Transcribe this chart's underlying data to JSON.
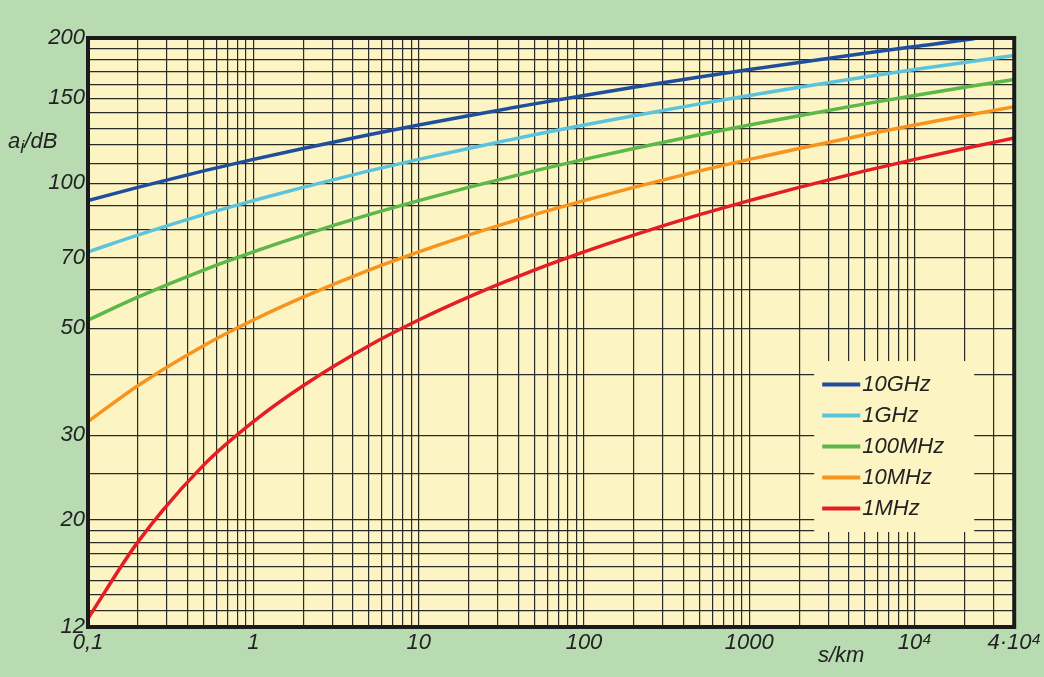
{
  "chart_data": {
    "type": "line",
    "xlabel": "s/km",
    "ylabel": "a$_{i}$/dB",
    "log": "xy",
    "grid": true,
    "legend": "bottom right",
    "marker": "none",
    "line_style": "solid",
    "x": [
      0.1,
      0.2,
      0.5,
      1,
      2,
      5,
      10,
      20,
      50,
      100,
      200,
      500,
      1000,
      2000,
      5000,
      10000,
      20000,
      40000
    ],
    "xlim": [
      0.1,
      40000
    ],
    "xticks": [
      {
        "value": 0.1,
        "label": "0,1"
      },
      {
        "value": 0.2,
        "label": null
      },
      {
        "value": 0.3,
        "label": null
      },
      {
        "value": 0.4,
        "label": null
      },
      {
        "value": 0.5,
        "label": null
      },
      {
        "value": 0.6,
        "label": null
      },
      {
        "value": 0.7,
        "label": null
      },
      {
        "value": 0.8,
        "label": null
      },
      {
        "value": 0.9,
        "label": null
      },
      1,
      {
        "value": 2,
        "label": null
      },
      {
        "value": 3,
        "label": null
      },
      {
        "value": 4,
        "label": null
      },
      {
        "value": 5,
        "label": null
      },
      {
        "value": 6,
        "label": null
      },
      {
        "value": 7,
        "label": null
      },
      {
        "value": 8,
        "label": null
      },
      {
        "value": 9,
        "label": null
      },
      10,
      {
        "value": 20,
        "label": null
      },
      {
        "value": 30,
        "label": null
      },
      {
        "value": 40,
        "label": null
      },
      {
        "value": 50,
        "label": null
      },
      {
        "value": 60,
        "label": null
      },
      {
        "value": 70,
        "label": null
      },
      {
        "value": 80,
        "label": null
      },
      {
        "value": 90,
        "label": null
      },
      100,
      {
        "value": 200,
        "label": null
      },
      {
        "value": 300,
        "label": null
      },
      {
        "value": 400,
        "label": null
      },
      {
        "value": 500,
        "label": null
      },
      {
        "value": 600,
        "label": null
      },
      {
        "value": 700,
        "label": null
      },
      {
        "value": 800,
        "label": null
      },
      {
        "value": 900,
        "label": null
      },
      1000,
      {
        "value": 2000,
        "label": null
      },
      {
        "value": 3000,
        "label": null
      },
      {
        "value": 4000,
        "label": null
      },
      {
        "value": 5000,
        "label": null
      },
      {
        "value": 6000,
        "label": null
      },
      {
        "value": 7000,
        "label": null
      },
      {
        "value": 8000,
        "label": null
      },
      {
        "value": 9000,
        "label": null
      },
      {
        "value": 10000,
        "label": "10⁴"
      },
      {
        "value": 20000,
        "label": null
      },
      {
        "value": 30000,
        "label": null
      },
      {
        "value": 40000,
        "label": "4·10⁴"
      }
    ],
    "ylim": [
      12,
      200
    ],
    "yticks": [
      12,
      {
        "value": 13,
        "label": null
      },
      {
        "value": 14,
        "label": null
      },
      {
        "value": 15,
        "label": null
      },
      {
        "value": 16,
        "label": null
      },
      {
        "value": 17,
        "label": null
      },
      {
        "value": 18,
        "label": null
      },
      {
        "value": 19,
        "label": null
      },
      20,
      {
        "value": 25,
        "label": null
      },
      30,
      {
        "value": 40,
        "label": null
      },
      50,
      {
        "value": 60,
        "label": null
      },
      70,
      {
        "value": 80,
        "label": null
      },
      {
        "value": 90,
        "label": null
      },
      100,
      {
        "value": 110,
        "label": null
      },
      {
        "value": 120,
        "label": null
      },
      {
        "value": 130,
        "label": null
      },
      {
        "value": 140,
        "label": null
      },
      150,
      {
        "value": 160,
        "label": null
      },
      {
        "value": 170,
        "label": null
      },
      {
        "value": 180,
        "label": null
      },
      {
        "value": 190,
        "label": null
      },
      200
    ],
    "series": [
      {
        "name": "10GHz",
        "color": "#1f4e9c",
        "x": [
          0.1,
          0.2,
          0.5,
          1,
          2,
          5,
          10,
          20,
          50,
          100,
          200,
          500,
          1000,
          2000,
          5000,
          10000,
          20000,
          24000
        ],
        "values": [
          92,
          98,
          106,
          112,
          118,
          126,
          132,
          138,
          146,
          152,
          158,
          166,
          172,
          178,
          186,
          192,
          198,
          200
        ]
      },
      {
        "name": "1GHz",
        "color": "#5bc4dc",
        "values": [
          72,
          78,
          86,
          92,
          98,
          106,
          112,
          118,
          126,
          132,
          138,
          146,
          152,
          158,
          166,
          172,
          178,
          184
        ]
      },
      {
        "name": "100MHz",
        "color": "#5cb848",
        "values": [
          52,
          58,
          66,
          72,
          78,
          86,
          92,
          98,
          106,
          112,
          118,
          126,
          132,
          138,
          146,
          152,
          158,
          164
        ]
      },
      {
        "name": "10MHz",
        "color": "#f7941d",
        "values": [
          32,
          38,
          46,
          52,
          58,
          66,
          72,
          78,
          86,
          92,
          98,
          106,
          112,
          118,
          126,
          132,
          138,
          144
        ]
      },
      {
        "name": "1MHz",
        "color": "#e31e24",
        "values": [
          12.5,
          18,
          26,
          32,
          38,
          46,
          52,
          58,
          66,
          72,
          78,
          86,
          92,
          98,
          106,
          112,
          118,
          124
        ]
      }
    ]
  }
}
